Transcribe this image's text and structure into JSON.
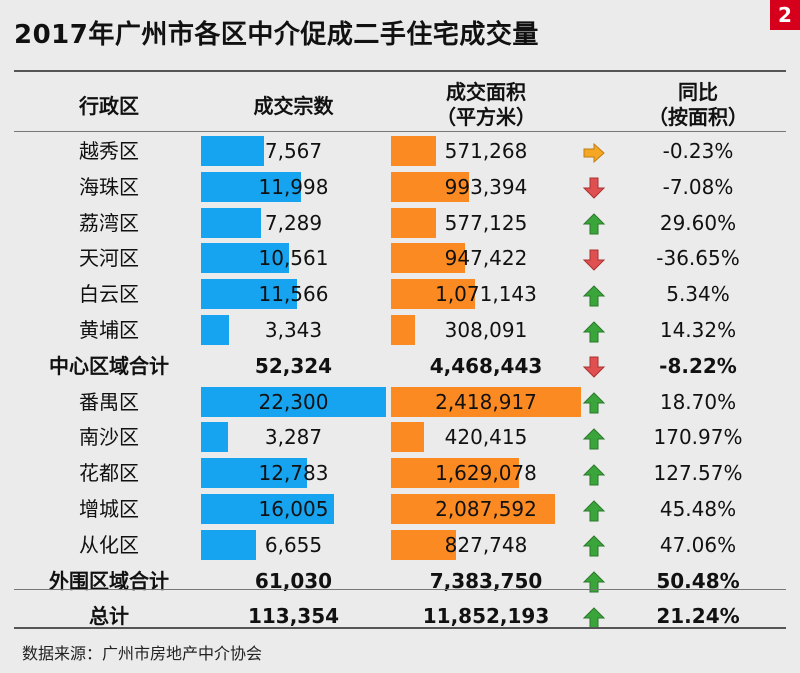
{
  "badge": "2",
  "chart_data": {
    "type": "table",
    "title": "2017年广州市各区中介促成二手住宅成交量",
    "columns": [
      "行政区",
      "成交宗数",
      "成交面积（平方米）",
      "同比（按面积）"
    ],
    "header": {
      "district": "行政区",
      "count": "成交宗数",
      "area_1": "成交面积",
      "area_2": "（平方米）",
      "yoy_1": "同比",
      "yoy_2": "（按面积）"
    },
    "rows": [
      {
        "district": "越秀区",
        "count": 7567,
        "count_text": "7,567",
        "area": 571268,
        "area_text": "571,268",
        "trend": "flat",
        "yoy": "-0.23%",
        "bold": false
      },
      {
        "district": "海珠区",
        "count": 11998,
        "count_text": "11,998",
        "area": 993394,
        "area_text": "993,394",
        "trend": "down",
        "yoy": "-7.08%",
        "bold": false
      },
      {
        "district": "荔湾区",
        "count": 7289,
        "count_text": "7,289",
        "area": 577125,
        "area_text": "577,125",
        "trend": "up",
        "yoy": "29.60%",
        "bold": false
      },
      {
        "district": "天河区",
        "count": 10561,
        "count_text": "10,561",
        "area": 947422,
        "area_text": "947,422",
        "trend": "down",
        "yoy": "-36.65%",
        "bold": false
      },
      {
        "district": "白云区",
        "count": 11566,
        "count_text": "11,566",
        "area": 1071143,
        "area_text": "1,071,143",
        "trend": "up",
        "yoy": "5.34%",
        "bold": false
      },
      {
        "district": "黄埔区",
        "count": 3343,
        "count_text": "3,343",
        "area": 308091,
        "area_text": "308,091",
        "trend": "up",
        "yoy": "14.32%",
        "bold": false
      },
      {
        "district": "中心区域合计",
        "count": 52324,
        "count_text": "52,324",
        "area": 4468443,
        "area_text": "4,468,443",
        "trend": "down",
        "yoy": "-8.22%",
        "bold": true,
        "nobar": true
      },
      {
        "district": "番禺区",
        "count": 22300,
        "count_text": "22,300",
        "area": 2418917,
        "area_text": "2,418,917",
        "trend": "up",
        "yoy": "18.70%",
        "bold": false
      },
      {
        "district": "南沙区",
        "count": 3287,
        "count_text": "3,287",
        "area": 420415,
        "area_text": "420,415",
        "trend": "up",
        "yoy": "170.97%",
        "bold": false
      },
      {
        "district": "花都区",
        "count": 12783,
        "count_text": "12,783",
        "area": 1629078,
        "area_text": "1,629,078",
        "trend": "up",
        "yoy": "127.57%",
        "bold": false
      },
      {
        "district": "增城区",
        "count": 16005,
        "count_text": "16,005",
        "area": 2087592,
        "area_text": "2,087,592",
        "trend": "up",
        "yoy": "45.48%",
        "bold": false
      },
      {
        "district": "从化区",
        "count": 6655,
        "count_text": "6,655",
        "area": 827748,
        "area_text": "827,748",
        "trend": "up",
        "yoy": "47.06%",
        "bold": false
      },
      {
        "district": "外围区域合计",
        "count": 61030,
        "count_text": "61,030",
        "area": 7383750,
        "area_text": "7,383,750",
        "trend": "up",
        "yoy": "50.48%",
        "bold": true,
        "nobar": true
      },
      {
        "district": "总计",
        "count": 113354,
        "count_text": "113,354",
        "area": 11852193,
        "area_text": "11,852,193",
        "trend": "up",
        "yoy": "21.24%",
        "bold": true,
        "nobar": true
      }
    ],
    "colors": {
      "count_bar": "#16a3ef",
      "area_bar": "#fb8a22",
      "up": "#3aa53a",
      "down": "#e05050",
      "flat": "#f5a623"
    }
  },
  "footer": "数据来源：广州市房地产中介协会"
}
